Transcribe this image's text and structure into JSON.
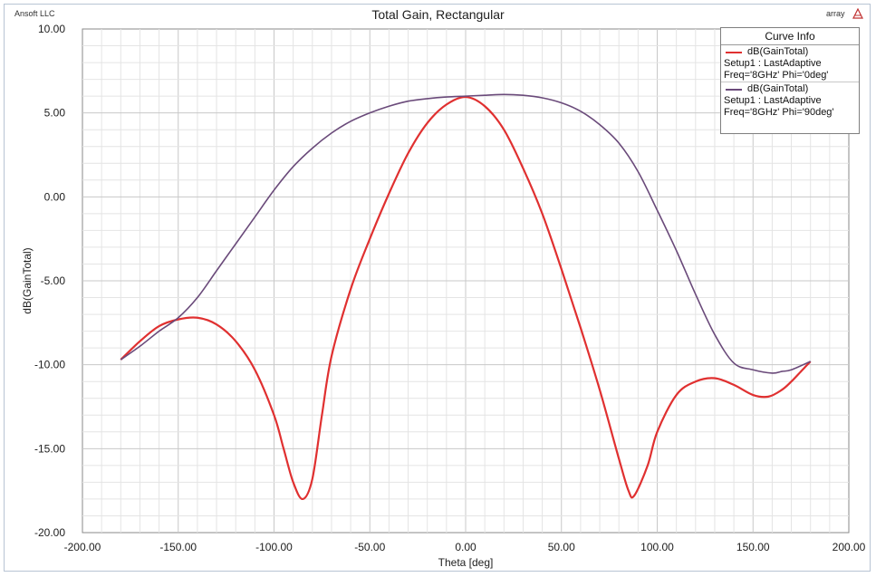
{
  "header": {
    "brand": "Ansoft LLC",
    "project": "array",
    "logo_icon": "ansoft-logo-icon"
  },
  "chart_data": {
    "type": "line",
    "title": "Total Gain, Rectangular",
    "xlabel": "Theta [deg]",
    "ylabel": "dB(GainTotal)",
    "xlim": [
      -200,
      200
    ],
    "ylim": [
      -20,
      10
    ],
    "x_ticks": [
      "-200.00",
      "-150.00",
      "-100.00",
      "-50.00",
      "0.00",
      "50.00",
      "100.00",
      "150.00",
      "200.00"
    ],
    "y_ticks": [
      "10.00",
      "5.00",
      "0.00",
      "-5.00",
      "-10.00",
      "-15.00",
      "-20.00"
    ],
    "grid": true,
    "legend_placement": "top-right",
    "legend": {
      "header": "Curve Info",
      "entries": [
        {
          "name": "dB(GainTotal)",
          "line2": "Setup1 : LastAdaptive",
          "line3": "Freq='8GHz' Phi='0deg'",
          "color": "#e03030"
        },
        {
          "name": "dB(GainTotal)",
          "line2": "Setup1 : LastAdaptive",
          "line3": "Freq='8GHz' Phi='90deg'",
          "color": "#6a4a7a"
        }
      ]
    },
    "series": [
      {
        "color": "#e03030",
        "x": [
          -180,
          -170,
          -160,
          -150,
          -140,
          -130,
          -120,
          -110,
          -100,
          -95,
          -90,
          -85,
          -80,
          -75,
          -70,
          -60,
          -50,
          -40,
          -30,
          -20,
          -10,
          0,
          10,
          20,
          30,
          40,
          50,
          60,
          70,
          80,
          85,
          88,
          95,
          100,
          110,
          120,
          130,
          140,
          150,
          158,
          165,
          170,
          175,
          180
        ],
        "y": [
          -9.7,
          -8.6,
          -7.7,
          -7.3,
          -7.2,
          -7.6,
          -8.6,
          -10.3,
          -13.0,
          -15.0,
          -17.0,
          -18.0,
          -16.8,
          -13.0,
          -9.5,
          -5.5,
          -2.5,
          0.2,
          2.6,
          4.4,
          5.5,
          5.95,
          5.4,
          4.0,
          1.7,
          -1.0,
          -4.3,
          -7.8,
          -11.5,
          -15.6,
          -17.5,
          -17.8,
          -16.0,
          -14.0,
          -11.8,
          -11.0,
          -10.8,
          -11.2,
          -11.8,
          -11.9,
          -11.5,
          -11.0,
          -10.4,
          -9.8
        ]
      },
      {
        "color": "#6a4a7a",
        "x": [
          -180,
          -170,
          -160,
          -150,
          -140,
          -130,
          -120,
          -110,
          -100,
          -90,
          -80,
          -70,
          -60,
          -50,
          -40,
          -30,
          -20,
          -10,
          0,
          10,
          20,
          30,
          40,
          50,
          60,
          70,
          80,
          90,
          100,
          110,
          120,
          130,
          140,
          150,
          160,
          165,
          170,
          180
        ],
        "y": [
          -9.7,
          -8.9,
          -8.0,
          -7.2,
          -6.0,
          -4.4,
          -2.8,
          -1.2,
          0.4,
          1.8,
          2.9,
          3.8,
          4.5,
          5.0,
          5.4,
          5.7,
          5.85,
          5.95,
          6.0,
          6.05,
          6.1,
          6.05,
          5.9,
          5.6,
          5.1,
          4.3,
          3.2,
          1.5,
          -0.8,
          -3.2,
          -5.8,
          -8.2,
          -9.9,
          -10.3,
          -10.5,
          -10.4,
          -10.3,
          -9.8
        ]
      }
    ]
  }
}
